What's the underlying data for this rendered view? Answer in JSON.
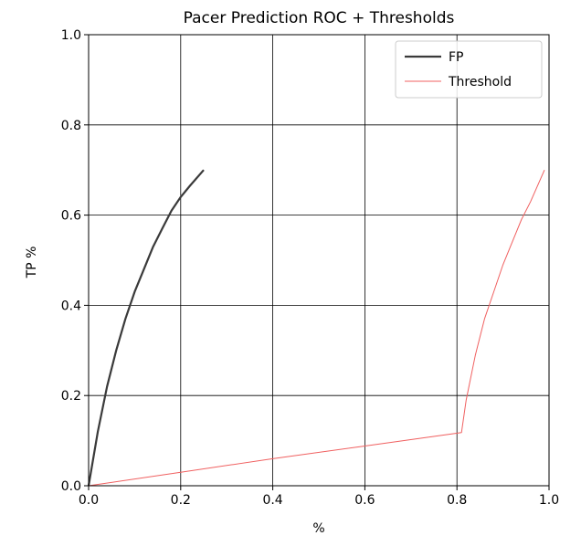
{
  "chart_data": {
    "type": "line",
    "title": "Pacer Prediction ROC + Thresholds",
    "xlabel": "%",
    "ylabel": "TP %",
    "xlim": [
      0.0,
      1.0
    ],
    "ylim": [
      0.0,
      1.0
    ],
    "grid": true,
    "legend_position": "top-right",
    "x_ticks": [
      "0.0",
      "0.2",
      "0.4",
      "0.6",
      "0.8",
      "1.0"
    ],
    "y_ticks": [
      "0.0",
      "0.2",
      "0.4",
      "0.6",
      "0.8",
      "1.0"
    ],
    "series": [
      {
        "name": "FP",
        "color": "#3a3a3a",
        "x": [
          0.0,
          0.02,
          0.04,
          0.06,
          0.08,
          0.1,
          0.12,
          0.14,
          0.16,
          0.18,
          0.2,
          0.22,
          0.25
        ],
        "y": [
          0.0,
          0.12,
          0.22,
          0.3,
          0.37,
          0.43,
          0.48,
          0.53,
          0.57,
          0.61,
          0.64,
          0.665,
          0.7
        ]
      },
      {
        "name": "Threshold",
        "color": "#f06060",
        "x": [
          0.0,
          0.2,
          0.4,
          0.6,
          0.81,
          0.82,
          0.84,
          0.86,
          0.88,
          0.9,
          0.92,
          0.94,
          0.96,
          0.99
        ],
        "y": [
          0.0,
          0.03,
          0.06,
          0.088,
          0.118,
          0.19,
          0.29,
          0.37,
          0.43,
          0.49,
          0.54,
          0.59,
          0.63,
          0.7
        ]
      }
    ]
  }
}
